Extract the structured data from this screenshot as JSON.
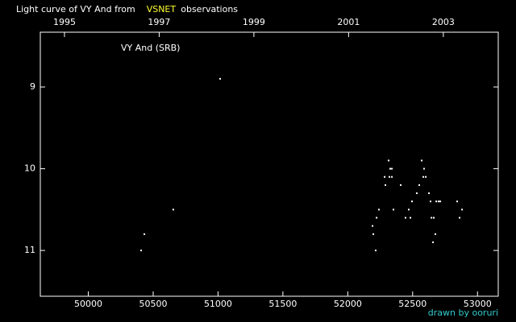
{
  "chart_data": {
    "type": "scatter",
    "title": "Light curve of VY And from",
    "title_highlight": "VSNET",
    "title_end": "observations",
    "annotation": "VY And (SRB)",
    "credit": "drawn by ooruri",
    "color": "#ffffff",
    "x": [
      51016,
      50407,
      50432,
      50655,
      52191,
      52197,
      52215,
      52222,
      52240,
      52284,
      52290,
      52315,
      52321,
      52327,
      52340,
      52340,
      52352,
      52408,
      52445,
      52470,
      52483,
      52495,
      52532,
      52551,
      52570,
      52582,
      52588,
      52601,
      52626,
      52638,
      52645,
      52657,
      52663,
      52675,
      52682,
      52700,
      52713,
      52843,
      52862,
      52881
    ],
    "values": [
      8.9,
      11.0,
      10.8,
      10.5,
      10.7,
      10.8,
      11.0,
      10.6,
      10.5,
      10.1,
      10.2,
      9.9,
      10.1,
      10.0,
      10.0,
      10.1,
      10.5,
      10.2,
      10.6,
      10.5,
      10.6,
      10.4,
      10.3,
      10.2,
      9.9,
      10.1,
      10.0,
      10.1,
      10.3,
      10.4,
      10.6,
      10.9,
      10.6,
      10.8,
      10.4,
      10.4,
      10.4,
      10.4,
      10.6,
      10.5
    ],
    "xlim": [
      49630,
      53160
    ],
    "xticks": [
      50000,
      50500,
      51000,
      51500,
      52000,
      52500,
      53000
    ],
    "x2lim": [
      1994.49,
      2004.16
    ],
    "x2ticks": [
      1995,
      1997,
      1999,
      2001,
      2003
    ],
    "ylim": [
      11.56,
      8.33
    ],
    "yticks": [
      9,
      10,
      11
    ]
  }
}
